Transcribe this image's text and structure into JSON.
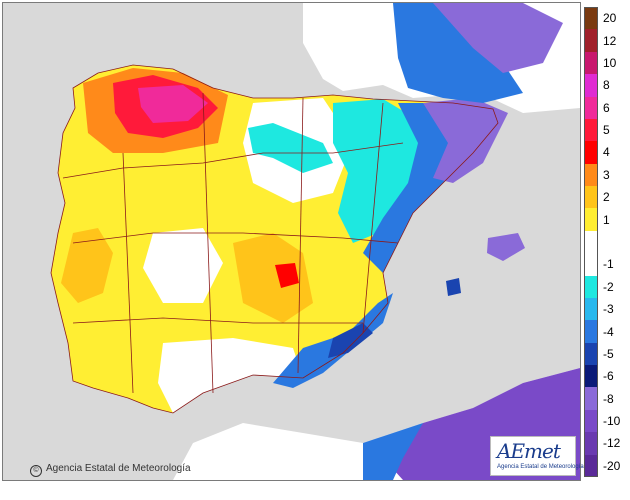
{
  "map": {
    "credit_text": "Agencia Estatal de Meteorología",
    "credit_symbol": "©",
    "logo_word": "AEmet",
    "logo_subtitle": "Agencia Estatal de Meteorología",
    "colors": {
      "sea": "#d9d9d9",
      "border": "#8b1a1a"
    }
  },
  "legend": {
    "bands": [
      {
        "label": "20",
        "color": "#7a3a10"
      },
      {
        "label": "12",
        "color": "#a0202a"
      },
      {
        "label": "10",
        "color": "#c8186e"
      },
      {
        "label": "8",
        "color": "#e02bd2"
      },
      {
        "label": "6",
        "color": "#f02a9a"
      },
      {
        "label": "5",
        "color": "#ff1a3a"
      },
      {
        "label": "4",
        "color": "#ff0000"
      },
      {
        "label": "3",
        "color": "#ff8a1a"
      },
      {
        "label": "2",
        "color": "#ffc41a"
      },
      {
        "label": "1",
        "color": "#ffee33"
      },
      {
        "label": "",
        "color": "#ffffff"
      },
      {
        "label": "-1",
        "color": "#ffffff"
      },
      {
        "label": "-2",
        "color": "#1ee8e0"
      },
      {
        "label": "-3",
        "color": "#28b8ee"
      },
      {
        "label": "-4",
        "color": "#2a78e0"
      },
      {
        "label": "-5",
        "color": "#1a44b0"
      },
      {
        "label": "-6",
        "color": "#0a1a78"
      },
      {
        "label": "-8",
        "color": "#8a6ad8"
      },
      {
        "label": "-10",
        "color": "#7a4ac8"
      },
      {
        "label": "-12",
        "color": "#6a3ab0"
      },
      {
        "label": "-20",
        "color": "#5a2a98"
      }
    ]
  }
}
